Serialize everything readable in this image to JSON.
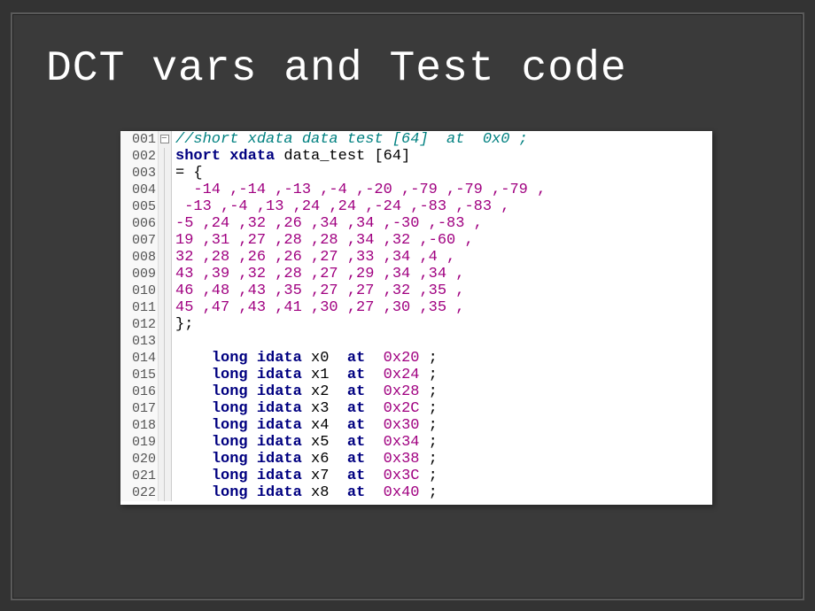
{
  "slide": {
    "title": "DCT vars and Test code",
    "background_color": "#333333",
    "panel_color": "#3a3a3a",
    "title_color": "#ffffff",
    "title_fontsize": 48
  },
  "code": {
    "font_family": "Courier New",
    "fontsize": 17,
    "line_height": 19,
    "gutter_bg": "#f8f8f8",
    "gutter_color": "#555555",
    "comment_color": "#008080",
    "keyword_color": "#000080",
    "number_color": "#a00080",
    "text_color": "#000000",
    "comment_row": "//short xdata data test [64]  at  0x0 ;",
    "decl_parts": {
      "kw": "short xdata",
      "id": "data_test [64]"
    },
    "open_brace": "= {",
    "data_test": [
      [
        -14,
        -14,
        -13,
        -4,
        -20,
        -79,
        -79,
        -79
      ],
      [
        -13,
        -4,
        13,
        24,
        24,
        -24,
        -83,
        -83
      ],
      [
        -5,
        24,
        32,
        26,
        34,
        34,
        -30,
        -83
      ],
      [
        19,
        31,
        27,
        28,
        28,
        34,
        32,
        -60
      ],
      [
        32,
        28,
        26,
        26,
        27,
        33,
        34,
        4
      ],
      [
        43,
        39,
        32,
        28,
        27,
        29,
        34,
        34
      ],
      [
        46,
        48,
        43,
        35,
        27,
        27,
        32,
        35
      ],
      [
        45,
        47,
        43,
        41,
        30,
        27,
        30,
        35
      ]
    ],
    "data_row_strings": [
      "  -14 ,-14 ,-13 ,-4 ,-20 ,-79 ,-79 ,-79 ,",
      " -13 ,-4 ,13 ,24 ,24 ,-24 ,-83 ,-83 ,",
      "-5 ,24 ,32 ,26 ,34 ,34 ,-30 ,-83 ,",
      "19 ,31 ,27 ,28 ,28 ,34 ,32 ,-60 ,",
      "32 ,28 ,26 ,26 ,27 ,33 ,34 ,4 ,",
      "43 ,39 ,32 ,28 ,27 ,29 ,34 ,34 ,",
      "46 ,48 ,43 ,35 ,27 ,27 ,32 ,35 ,",
      "45 ,47 ,43 ,41 ,30 ,27 ,30 ,35 ,"
    ],
    "close_brace": "};",
    "vars": [
      {
        "name": "x0",
        "addr": "0x20"
      },
      {
        "name": "x1",
        "addr": "0x24"
      },
      {
        "name": "x2",
        "addr": "0x28"
      },
      {
        "name": "x3",
        "addr": "0x2C"
      },
      {
        "name": "x4",
        "addr": "0x30"
      },
      {
        "name": "x5",
        "addr": "0x34"
      },
      {
        "name": "x6",
        "addr": "0x38"
      },
      {
        "name": "x7",
        "addr": "0x3C"
      },
      {
        "name": "x8",
        "addr": "0x40"
      }
    ],
    "var_kw": "long idata",
    "var_at": "at",
    "line_numbers": [
      "001",
      "002",
      "003",
      "004",
      "005",
      "006",
      "007",
      "008",
      "009",
      "010",
      "011",
      "012",
      "013",
      "014",
      "015",
      "016",
      "017",
      "018",
      "019",
      "020",
      "021",
      "022"
    ]
  }
}
